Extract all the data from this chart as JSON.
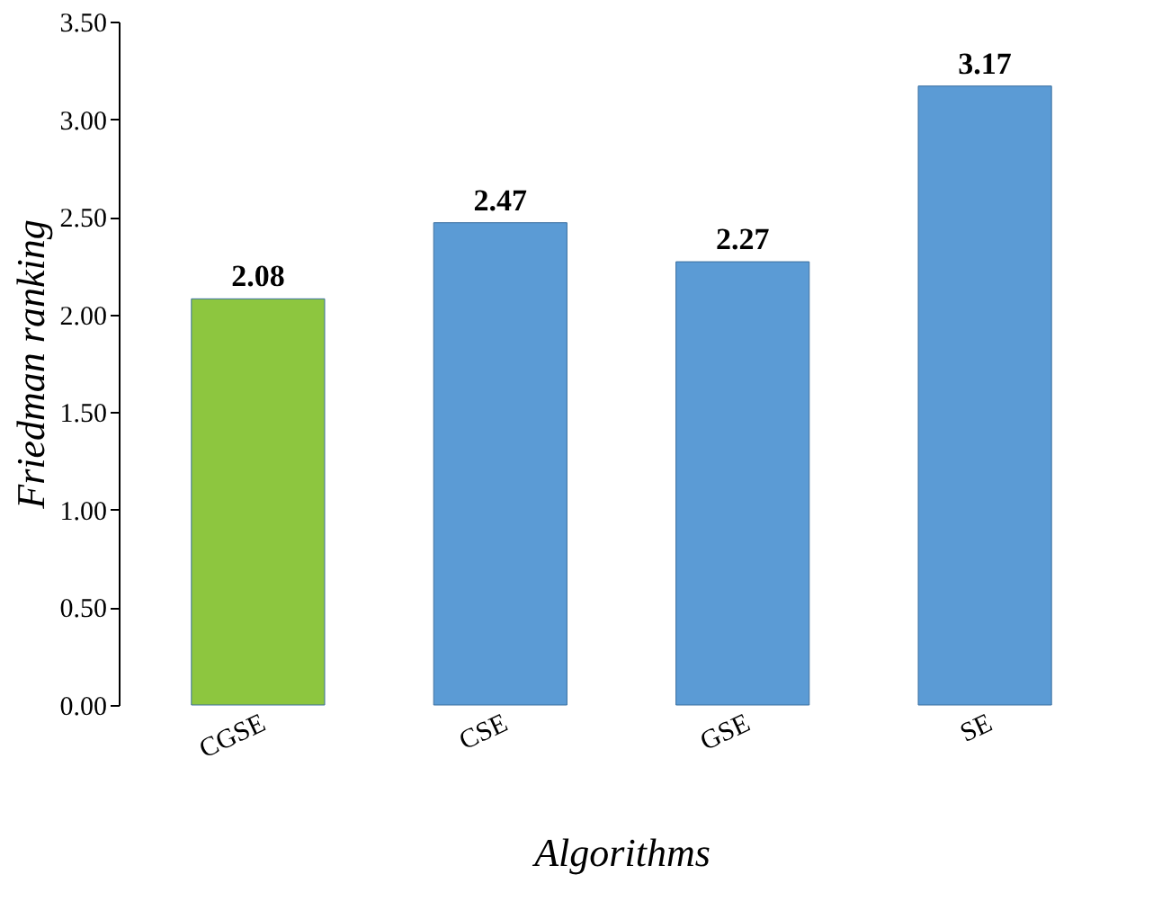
{
  "chart_data": {
    "type": "bar",
    "xlabel": "Algorithms",
    "ylabel": "Friedman ranking",
    "categories": [
      "CGSE",
      "CSE",
      "GSE",
      "SE"
    ],
    "values": [
      2.08,
      2.47,
      2.27,
      3.17
    ],
    "colors": [
      "#8dc63f",
      "#5b9bd5",
      "#5b9bd5",
      "#5b9bd5"
    ],
    "ylim": [
      0,
      3.5
    ],
    "yticks": [
      {
        "value": 0,
        "label": "0.00"
      },
      {
        "value": 0.5,
        "label": "0.50"
      },
      {
        "value": 1,
        "label": "1.00"
      },
      {
        "value": 1.5,
        "label": "1.50"
      },
      {
        "value": 2,
        "label": "2.00"
      },
      {
        "value": 2.5,
        "label": "2.50"
      },
      {
        "value": 3,
        "label": "3.00"
      },
      {
        "value": 3.5,
        "label": "3.50"
      }
    ],
    "data_labels": true,
    "grid": false
  }
}
